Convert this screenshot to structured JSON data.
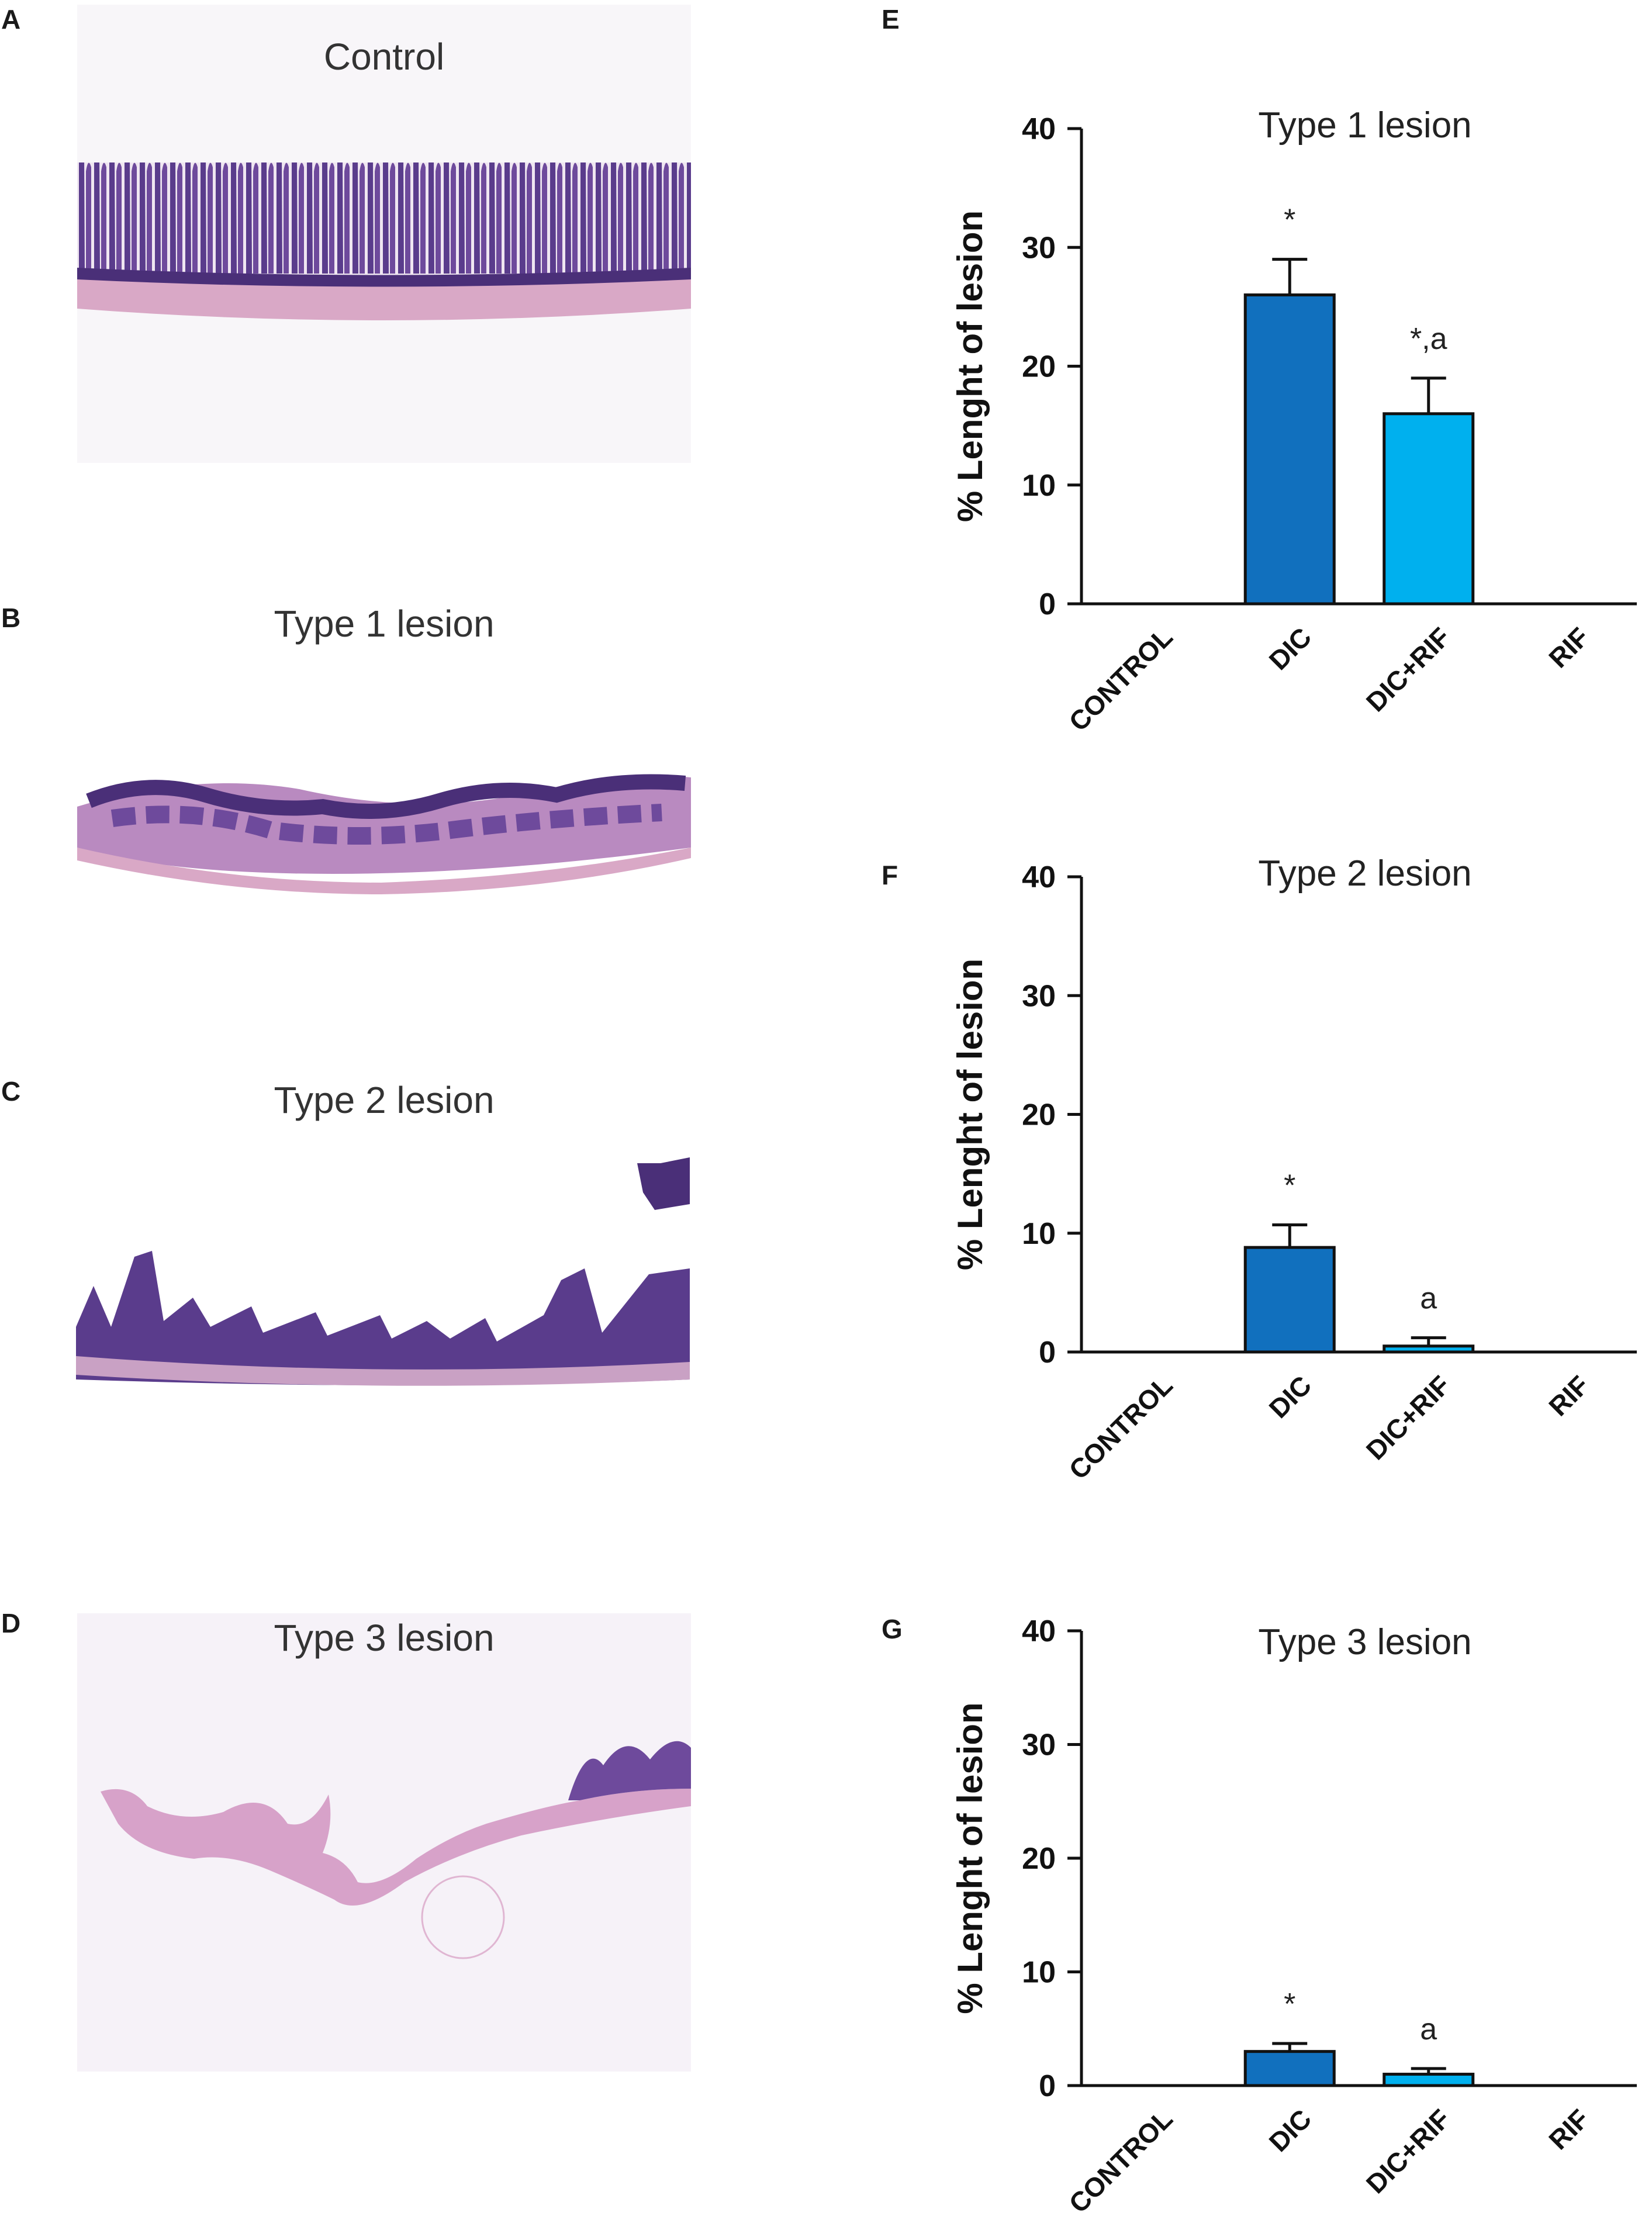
{
  "panels": {
    "A": "A",
    "B": "B",
    "C": "C",
    "D": "D",
    "E": "E",
    "F": "F",
    "G": "G"
  },
  "micrographs": [
    {
      "title": "Control"
    },
    {
      "title": "Type 1  lesion"
    },
    {
      "title": "Type 2 lesion"
    },
    {
      "title": "Type 3 lesion"
    }
  ],
  "colors": {
    "dic": "#1170be",
    "dic_rif": "#00b0ee",
    "tissue_dark": "#5a3c8c",
    "tissue_light": "#d9a8c6",
    "bar_stroke": "#111111"
  },
  "chart_data": [
    {
      "type": "bar",
      "title": "Type 1 lesion",
      "ylabel": "% Lenght of lesion",
      "ylim": [
        0,
        40
      ],
      "yticks": [
        0,
        10,
        20,
        30,
        40
      ],
      "categories": [
        "CONTROL",
        "DIC",
        "DIC+RIF",
        "RIF"
      ],
      "values": [
        0,
        26,
        16,
        0
      ],
      "errors": [
        0,
        3,
        3,
        0
      ],
      "annotations": [
        "",
        "*",
        "*,a",
        ""
      ]
    },
    {
      "type": "bar",
      "title": "Type 2 lesion",
      "ylabel": "% Lenght of lesion",
      "ylim": [
        0,
        40
      ],
      "yticks": [
        0,
        10,
        20,
        30,
        40
      ],
      "categories": [
        "CONTROL",
        "DIC",
        "DIC+RIF",
        "RIF"
      ],
      "values": [
        0,
        8.8,
        0.5,
        0
      ],
      "errors": [
        0,
        1.9,
        0.7,
        0
      ],
      "annotations": [
        "",
        "*",
        "a",
        ""
      ]
    },
    {
      "type": "bar",
      "title": "Type 3 lesion",
      "ylabel": "% Lenght of lesion",
      "ylim": [
        0,
        40
      ],
      "yticks": [
        0,
        10,
        20,
        30,
        40
      ],
      "categories": [
        "CONTROL",
        "DIC",
        "DIC+RIF",
        "RIF"
      ],
      "values": [
        0,
        3,
        1,
        0
      ],
      "errors": [
        0,
        0.7,
        0.5,
        0
      ],
      "annotations": [
        "",
        "*",
        "a",
        ""
      ]
    }
  ]
}
